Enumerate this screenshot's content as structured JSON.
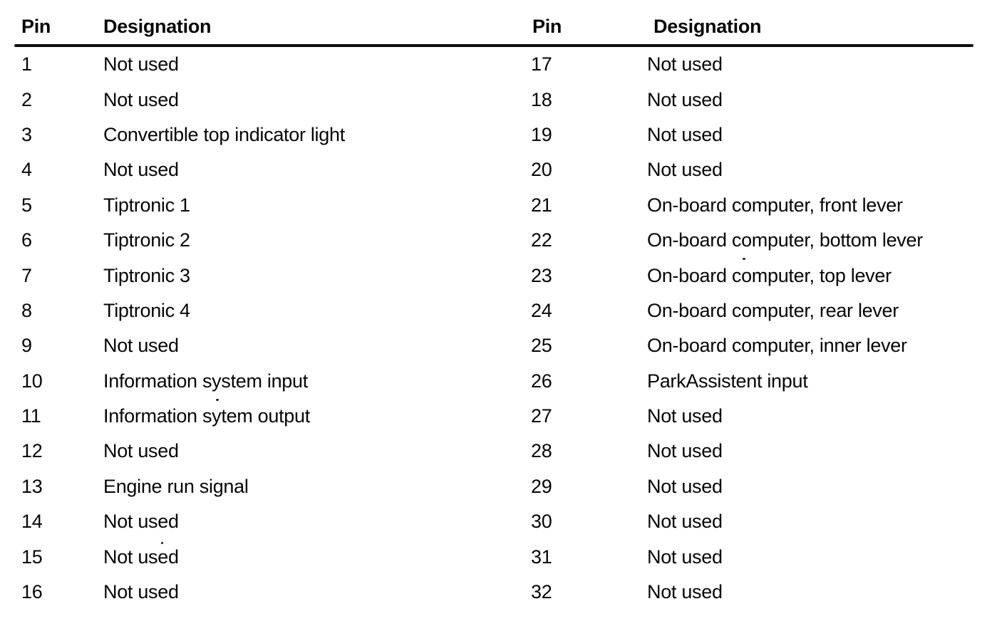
{
  "document": {
    "kind": "pin-assignment-table",
    "colors": {
      "background": "#ffffff",
      "text": "#0a0a0a",
      "rule": "#0c0c0c"
    },
    "table": {
      "left": {
        "headers": {
          "pin": "Pin",
          "designation": "Designation"
        },
        "rows": [
          {
            "pin": "1",
            "designation": "Not used"
          },
          {
            "pin": "2",
            "designation": "Not used"
          },
          {
            "pin": "3",
            "designation": "Convertible top indicator light"
          },
          {
            "pin": "4",
            "designation": "Not used"
          },
          {
            "pin": "5",
            "designation": "Tiptronic 1"
          },
          {
            "pin": "6",
            "designation": "Tiptronic 2"
          },
          {
            "pin": "7",
            "designation": "Tiptronic 3"
          },
          {
            "pin": "8",
            "designation": "Tiptronic 4"
          },
          {
            "pin": "9",
            "designation": "Not used"
          },
          {
            "pin": "10",
            "designation": "Information system input"
          },
          {
            "pin": "11",
            "designation": "Information sytem output"
          },
          {
            "pin": "12",
            "designation": "Not used"
          },
          {
            "pin": "13",
            "designation": "Engine run signal"
          },
          {
            "pin": "14",
            "designation": "Not used"
          },
          {
            "pin": "15",
            "designation": "Not used"
          },
          {
            "pin": "16",
            "designation": "Not used"
          }
        ]
      },
      "right": {
        "headers": {
          "pin": "Pin",
          "designation": "Designation"
        },
        "rows": [
          {
            "pin": "17",
            "designation": "Not used"
          },
          {
            "pin": "18",
            "designation": "Not used"
          },
          {
            "pin": "19",
            "designation": "Not used"
          },
          {
            "pin": "20",
            "designation": "Not used"
          },
          {
            "pin": "21",
            "designation": "On-board computer, front lever"
          },
          {
            "pin": "22",
            "designation": "On-board computer, bottom lever"
          },
          {
            "pin": "23",
            "designation": "On-board computer, top lever"
          },
          {
            "pin": "24",
            "designation": "On-board computer, rear lever"
          },
          {
            "pin": "25",
            "designation": "On-board computer, inner lever"
          },
          {
            "pin": "26",
            "designation": "ParkAssistent input"
          },
          {
            "pin": "27",
            "designation": "Not used"
          },
          {
            "pin": "28",
            "designation": "Not used"
          },
          {
            "pin": "29",
            "designation": "Not used"
          },
          {
            "pin": "30",
            "designation": "Not used"
          },
          {
            "pin": "31",
            "designation": "Not used"
          },
          {
            "pin": "32",
            "designation": "Not used"
          }
        ]
      }
    }
  }
}
